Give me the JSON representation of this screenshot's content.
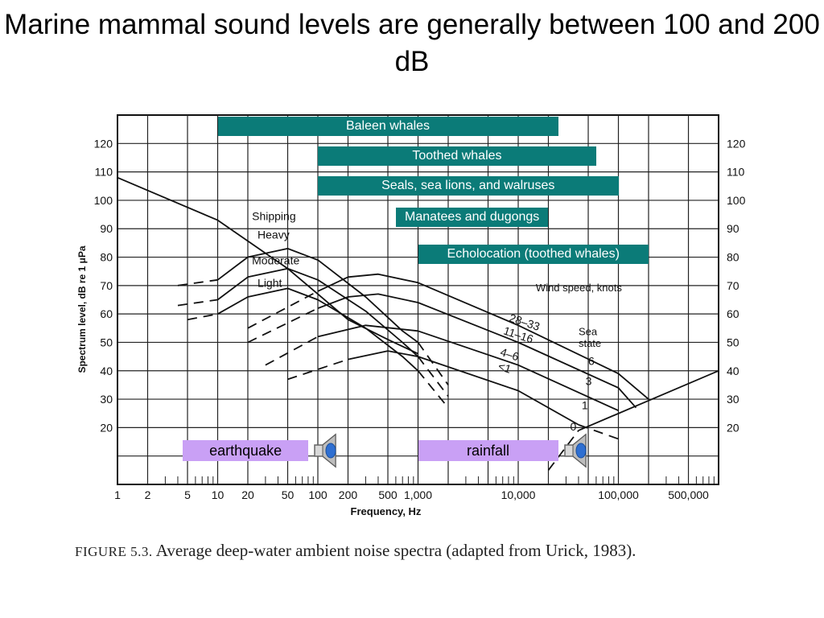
{
  "slide": {
    "title": "Marine mammal sound levels are generally between 100 and 200 dB"
  },
  "caption": {
    "figure_label": "FIGURE 5.3.",
    "text": "Average deep-water ambient noise spectra (adapted from Urick, 1983)."
  },
  "colors": {
    "range_bar": "#0b7b78",
    "event_bar": "#c9a0f5",
    "speaker_icon": "#2f6fd1"
  },
  "chart_data": {
    "type": "line",
    "xlabel": "Frequency, Hz",
    "ylabel": "Spectrum level, dB re 1 μPa",
    "x_scale": "log",
    "xlim": [
      1,
      1000000
    ],
    "ylim": [
      0,
      130
    ],
    "x_ticks": [
      {
        "value": 1,
        "label": "1"
      },
      {
        "value": 2,
        "label": "2"
      },
      {
        "value": 5,
        "label": "5"
      },
      {
        "value": 10,
        "label": "10"
      },
      {
        "value": 20,
        "label": "20"
      },
      {
        "value": 50,
        "label": "50"
      },
      {
        "value": 100,
        "label": "100"
      },
      {
        "value": 200,
        "label": "200"
      },
      {
        "value": 500,
        "label": "500"
      },
      {
        "value": 1000,
        "label": "1,000"
      },
      {
        "value": 10000,
        "label": "10,000"
      },
      {
        "value": 100000,
        "label": "100,000"
      },
      {
        "value": 500000,
        "label": "500,000"
      }
    ],
    "y_ticks": [
      {
        "value": 20,
        "label": "20"
      },
      {
        "value": 30,
        "label": "30"
      },
      {
        "value": 40,
        "label": "40"
      },
      {
        "value": 50,
        "label": "50"
      },
      {
        "value": 60,
        "label": "60"
      },
      {
        "value": 70,
        "label": "70"
      },
      {
        "value": 80,
        "label": "80"
      },
      {
        "value": 90,
        "label": "90"
      },
      {
        "value": 100,
        "label": "100"
      },
      {
        "value": 110,
        "label": "110"
      },
      {
        "value": 120,
        "label": "120"
      }
    ],
    "grid": true,
    "series": [
      {
        "name": "",
        "style": "solid",
        "points": [
          [
            1,
            108
          ],
          [
            10,
            93
          ],
          [
            50,
            76
          ],
          [
            200,
            58
          ],
          [
            500,
            51
          ],
          [
            1000,
            46
          ]
        ]
      },
      {
        "name": "Heavy",
        "style": "solid",
        "points": [
          [
            10,
            72
          ],
          [
            20,
            80
          ],
          [
            50,
            83
          ],
          [
            100,
            79
          ],
          [
            300,
            66
          ],
          [
            700,
            54
          ],
          [
            1000,
            50
          ]
        ]
      },
      {
        "name": "Heavy",
        "style": "dashed",
        "points": [
          [
            4,
            70
          ],
          [
            10,
            72
          ]
        ]
      },
      {
        "name": "Heavy",
        "style": "dashed",
        "points": [
          [
            1000,
            50
          ],
          [
            2000,
            35
          ]
        ]
      },
      {
        "name": "Moderate",
        "style": "solid",
        "points": [
          [
            10,
            65
          ],
          [
            20,
            73
          ],
          [
            50,
            76
          ],
          [
            100,
            72
          ],
          [
            300,
            61
          ],
          [
            700,
            50
          ],
          [
            1000,
            45
          ]
        ]
      },
      {
        "name": "Moderate",
        "style": "dashed",
        "points": [
          [
            4,
            63
          ],
          [
            10,
            65
          ]
        ]
      },
      {
        "name": "Moderate",
        "style": "dashed",
        "points": [
          [
            1000,
            45
          ],
          [
            2000,
            31
          ]
        ]
      },
      {
        "name": "Light",
        "style": "solid",
        "points": [
          [
            10,
            60
          ],
          [
            20,
            66
          ],
          [
            50,
            69
          ],
          [
            100,
            65
          ],
          [
            300,
            55
          ],
          [
            700,
            45
          ],
          [
            1000,
            40
          ]
        ]
      },
      {
        "name": "Light",
        "style": "dashed",
        "points": [
          [
            5,
            58
          ],
          [
            10,
            60
          ]
        ]
      },
      {
        "name": "Light",
        "style": "dashed",
        "points": [
          [
            1000,
            40
          ],
          [
            2000,
            27
          ]
        ]
      },
      {
        "name": "28-33",
        "style": "solid",
        "points": [
          [
            100,
            68
          ],
          [
            200,
            73
          ],
          [
            400,
            74
          ],
          [
            1000,
            71
          ],
          [
            10000,
            56
          ],
          [
            100000,
            39
          ],
          [
            200000,
            30
          ]
        ]
      },
      {
        "name": "28-33",
        "style": "dashed",
        "points": [
          [
            20,
            55
          ],
          [
            100,
            68
          ]
        ]
      },
      {
        "name": "11-16",
        "style": "solid",
        "points": [
          [
            100,
            62
          ],
          [
            200,
            66
          ],
          [
            400,
            67
          ],
          [
            1000,
            64
          ],
          [
            10000,
            50
          ],
          [
            100000,
            34
          ],
          [
            150000,
            27
          ]
        ]
      },
      {
        "name": "11-16",
        "style": "dashed",
        "points": [
          [
            20,
            50
          ],
          [
            100,
            62
          ]
        ]
      },
      {
        "name": "4-6",
        "style": "solid",
        "points": [
          [
            100,
            52
          ],
          [
            300,
            56
          ],
          [
            1000,
            54
          ],
          [
            10000,
            42
          ],
          [
            100000,
            26
          ]
        ]
      },
      {
        "name": "4-6",
        "style": "dashed",
        "points": [
          [
            30,
            42
          ],
          [
            100,
            52
          ]
        ]
      },
      {
        "name": "<1",
        "style": "solid",
        "points": [
          [
            200,
            44
          ],
          [
            500,
            47
          ],
          [
            1000,
            45
          ],
          [
            10000,
            33
          ],
          [
            40000,
            21
          ]
        ]
      },
      {
        "name": "<1",
        "style": "dashed",
        "points": [
          [
            50,
            37
          ],
          [
            200,
            44
          ]
        ]
      },
      {
        "name": "<1",
        "style": "dashed",
        "points": [
          [
            40000,
            21
          ],
          [
            100000,
            16
          ]
        ]
      },
      {
        "name": "",
        "style": "solid",
        "points": [
          [
            40000,
            19
          ],
          [
            1000000,
            40
          ]
        ]
      },
      {
        "name": "",
        "style": "dashed",
        "points": [
          [
            20000,
            5
          ],
          [
            40000,
            19
          ]
        ]
      }
    ],
    "annotations": {
      "shipping": [
        "Shipping",
        "Heavy",
        "Moderate",
        "Light"
      ],
      "wind_header": "Wind speed, knots",
      "wind": [
        "28–33",
        "11–16",
        "4–6",
        "<1"
      ],
      "sea_header": [
        "Sea",
        "state"
      ],
      "sea_state": [
        "6",
        "3",
        "1",
        "0"
      ]
    },
    "range_bars": [
      {
        "label": "Baleen whales",
        "x_from": 10,
        "x_to": 25000,
        "y": 126
      },
      {
        "label": "Toothed whales",
        "x_from": 100,
        "x_to": 60000,
        "y": 115.5
      },
      {
        "label": "Seals, sea lions, and walruses",
        "x_from": 100,
        "x_to": 100000,
        "y": 105
      },
      {
        "label": "Manatees and dugongs",
        "x_from": 600,
        "x_to": 20000,
        "y": 94
      },
      {
        "label": "Echolocation (toothed whales)",
        "x_from": 1000,
        "x_to": 200000,
        "y": 81
      }
    ],
    "event_bars": [
      {
        "label": "earthquake",
        "x_from": 4.5,
        "x_to": 80,
        "y": 12
      },
      {
        "label": "rainfall",
        "x_from": 1000,
        "x_to": 25000,
        "y": 12
      }
    ]
  }
}
